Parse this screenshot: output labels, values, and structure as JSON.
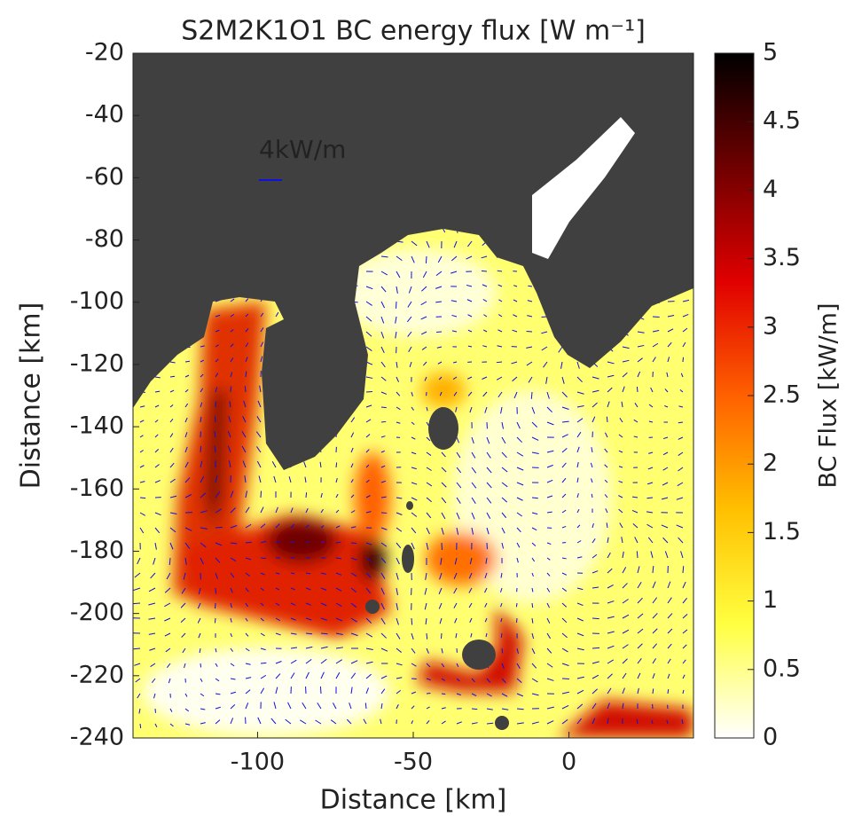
{
  "chart_data": {
    "type": "flux-map",
    "title": "S2M2K1O1 BC energy flux [W m⁻¹]",
    "x_label": "Distance [km]",
    "y_label": "Distance [km]",
    "xlim": [
      -140,
      40
    ],
    "xticks": [
      -100,
      -50,
      0
    ],
    "ylim": [
      -240,
      -20
    ],
    "yticks": [
      -240,
      -220,
      -200,
      -180,
      -160,
      -140,
      -120,
      -100,
      -80,
      -60,
      -40,
      -20
    ],
    "reference_arrow_label": "4kW/m",
    "arrow_color": "#1010e0",
    "land_color": "#404040",
    "colorbar": {
      "label": "BC Flux [kW/m]",
      "lim": [
        0,
        5
      ],
      "ticks": [
        0,
        0.5,
        1,
        1.5,
        2,
        2.5,
        3,
        3.5,
        4,
        4.5,
        5
      ],
      "colormap": [
        "#ffffff",
        "#ffff40",
        "#ffc000",
        "#ff6000",
        "#e00000",
        "#700000",
        "#000000"
      ]
    }
  }
}
